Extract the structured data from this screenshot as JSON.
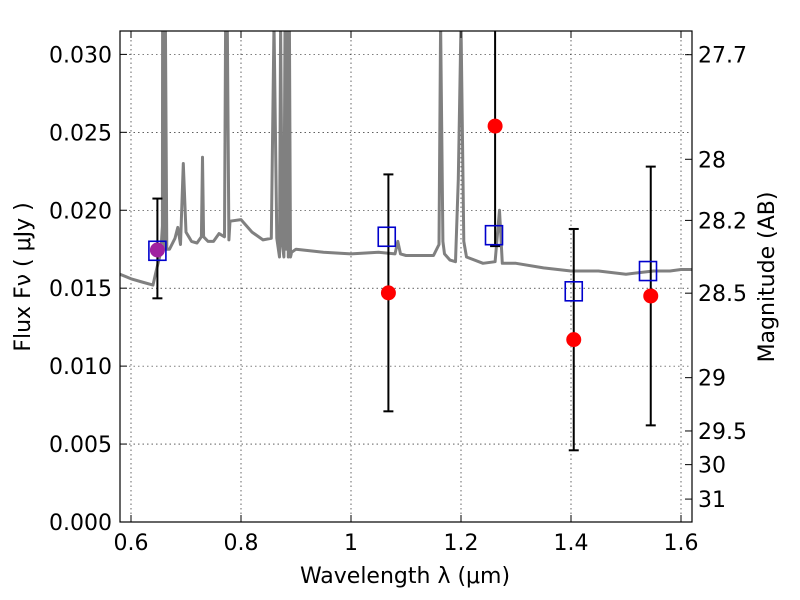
{
  "chart_data": {
    "type": "scatter",
    "xlabel": "Wavelength  λ (μm)",
    "ylabel": "Flux  Fν  ( μJy )",
    "ylabel_right": "Magnitude (AB)",
    "xlim": [
      0.58,
      1.62
    ],
    "ylim": [
      0.0,
      0.0315
    ],
    "grid": true,
    "x_ticks": [
      {
        "v": 0.6,
        "label": "0.6"
      },
      {
        "v": 0.8,
        "label": "0.8"
      },
      {
        "v": 1.0,
        "label": "1"
      },
      {
        "v": 1.2,
        "label": "1.2"
      },
      {
        "v": 1.4,
        "label": "1.4"
      },
      {
        "v": 1.6,
        "label": "1.6"
      }
    ],
    "y_ticks": [
      {
        "v": 0.0,
        "label": "0.000"
      },
      {
        "v": 0.005,
        "label": "0.005"
      },
      {
        "v": 0.01,
        "label": "0.010"
      },
      {
        "v": 0.015,
        "label": "0.015"
      },
      {
        "v": 0.02,
        "label": "0.020"
      },
      {
        "v": 0.025,
        "label": "0.025"
      },
      {
        "v": 0.03,
        "label": "0.030"
      }
    ],
    "mag_ticks": [
      {
        "flux": 0.02998,
        "label": "27.7"
      },
      {
        "flux": 0.02327,
        "label": "28"
      },
      {
        "flux": 0.01935,
        "label": "28.2"
      },
      {
        "flux": 0.01468,
        "label": "28.5"
      },
      {
        "flux": 0.00926,
        "label": "29"
      },
      {
        "flux": 0.00584,
        "label": "29.5"
      },
      {
        "flux": 0.00368,
        "label": "30"
      },
      {
        "flux": 0.00147,
        "label": "31"
      }
    ],
    "observed": {
      "color": "#ff0000",
      "points": [
        {
          "x": 0.648,
          "y": 0.01745,
          "yerr_low": 0.0031,
          "yerr_high": 0.0033
        },
        {
          "x": 1.068,
          "y": 0.0147,
          "yerr_low": 0.0076,
          "yerr_high": 0.0076
        },
        {
          "x": 1.262,
          "y": 0.0254,
          "yerr_low": 0.0077,
          "yerr_high": 0.0077
        },
        {
          "x": 1.405,
          "y": 0.0117,
          "yerr_low": 0.0071,
          "yerr_high": 0.0071
        },
        {
          "x": 1.545,
          "y": 0.0145,
          "yerr_low": 0.0083,
          "yerr_high": 0.0083
        }
      ]
    },
    "model_bandpass": {
      "color": "#0000cc",
      "points": [
        {
          "x": 0.648,
          "y": 0.0174
        },
        {
          "x": 1.065,
          "y": 0.0183
        },
        {
          "x": 1.26,
          "y": 0.0184
        },
        {
          "x": 1.405,
          "y": 0.0148
        },
        {
          "x": 1.54,
          "y": 0.0161
        }
      ]
    },
    "overlap_marker_color": "#a020a0",
    "sed_model": {
      "color": "#808080",
      "x": [
        0.58,
        0.6,
        0.62,
        0.64,
        0.645,
        0.652,
        0.655,
        0.657,
        0.6575,
        0.66,
        0.662,
        0.6625,
        0.665,
        0.67,
        0.68,
        0.685,
        0.69,
        0.695,
        0.7,
        0.705,
        0.71,
        0.72,
        0.728,
        0.73,
        0.732,
        0.74,
        0.75,
        0.76,
        0.77,
        0.772,
        0.775,
        0.778,
        0.78,
        0.8,
        0.82,
        0.84,
        0.855,
        0.86,
        0.865,
        0.87,
        0.872,
        0.875,
        0.878,
        0.88,
        0.882,
        0.884,
        0.886,
        0.888,
        0.89,
        0.892,
        0.9,
        0.95,
        1.0,
        1.05,
        1.08,
        1.085,
        1.09,
        1.1,
        1.15,
        1.16,
        1.163,
        1.167,
        1.17,
        1.18,
        1.19,
        1.195,
        1.2,
        1.205,
        1.21,
        1.24,
        1.262,
        1.27,
        1.275,
        1.28,
        1.3,
        1.35,
        1.4,
        1.45,
        1.5,
        1.55,
        1.58,
        1.6,
        1.62
      ],
      "y": [
        0.0159,
        0.0156,
        0.0154,
        0.0152,
        0.016,
        0.017,
        0.0178,
        0.019,
        0.032,
        0.018,
        0.0175,
        0.032,
        0.0175,
        0.0175,
        0.0182,
        0.0189,
        0.0178,
        0.023,
        0.0186,
        0.0183,
        0.018,
        0.0179,
        0.0183,
        0.0234,
        0.0183,
        0.018,
        0.018,
        0.0185,
        0.0183,
        0.032,
        0.032,
        0.0181,
        0.0193,
        0.0194,
        0.0186,
        0.0181,
        0.0182,
        0.032,
        0.0182,
        0.017,
        0.032,
        0.0178,
        0.017,
        0.032,
        0.0175,
        0.032,
        0.017,
        0.032,
        0.017,
        0.0173,
        0.0175,
        0.0173,
        0.0172,
        0.0173,
        0.0172,
        0.018,
        0.0172,
        0.0171,
        0.0171,
        0.0178,
        0.032,
        0.018,
        0.0172,
        0.0168,
        0.0167,
        0.022,
        0.032,
        0.018,
        0.017,
        0.0166,
        0.0167,
        0.02,
        0.0166,
        0.0166,
        0.0166,
        0.0163,
        0.0161,
        0.0161,
        0.0159,
        0.0161,
        0.0161,
        0.0162,
        0.0162
      ]
    }
  }
}
